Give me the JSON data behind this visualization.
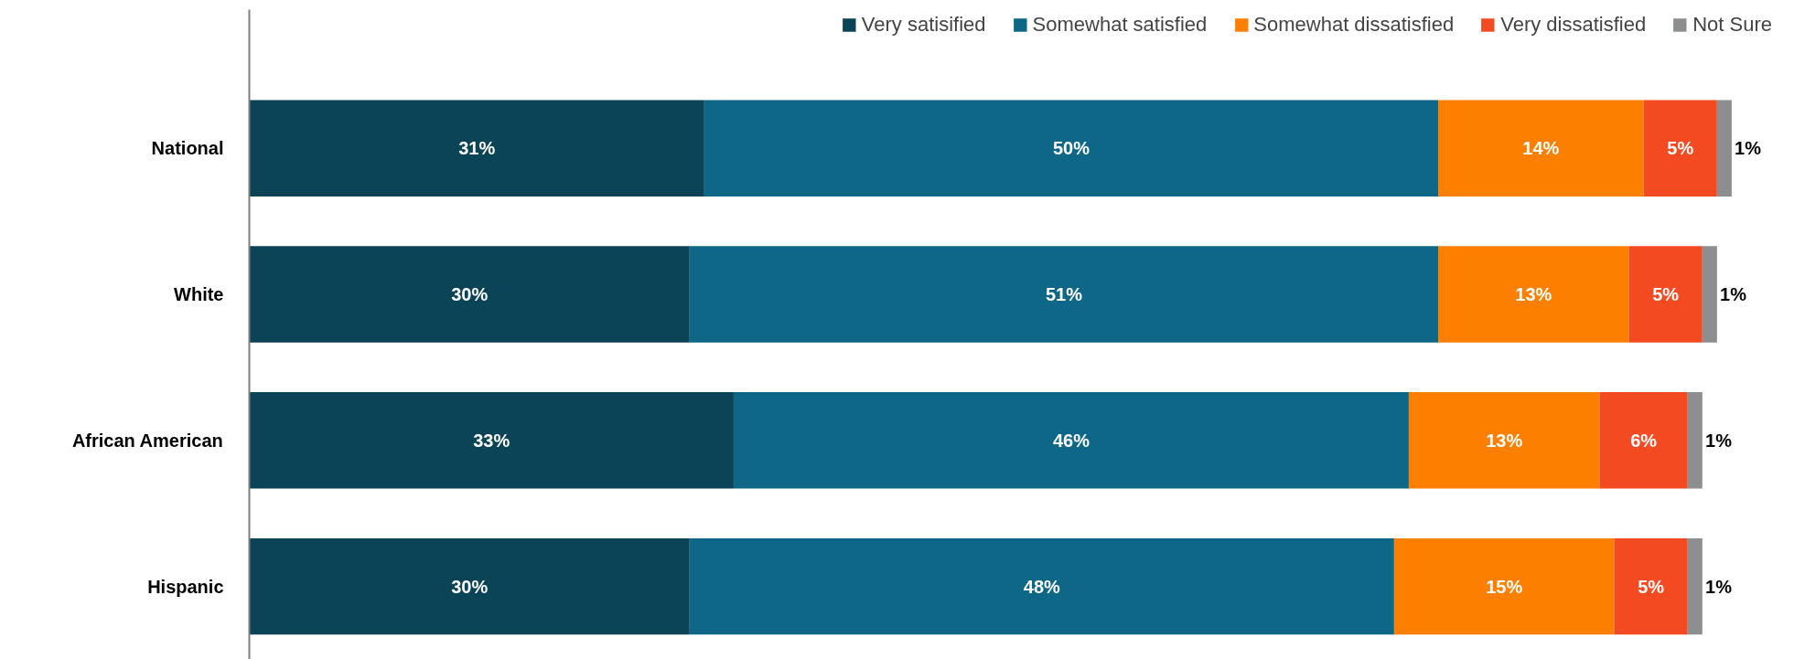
{
  "chart_data": {
    "type": "bar",
    "orientation": "horizontal",
    "stacked": true,
    "legend": "top",
    "categories": [
      "National",
      "White",
      "African American",
      "Hispanic"
    ],
    "series": [
      {
        "name": "Very satisified",
        "color": "#0b4357",
        "values": [
          31,
          30,
          33,
          30
        ],
        "value_labels": [
          "31%",
          "30%",
          "33%",
          "30%"
        ]
      },
      {
        "name": "Somewhat satisfied",
        "color": "#0f6788",
        "values": [
          50,
          51,
          46,
          48
        ],
        "value_labels": [
          "50%",
          "51%",
          "46%",
          "48%"
        ]
      },
      {
        "name": "Somewhat dissatisfied",
        "color": "#fd7f00",
        "values": [
          14,
          13,
          13,
          15
        ],
        "value_labels": [
          "14%",
          "13%",
          "13%",
          "15%"
        ]
      },
      {
        "name": "Very dissatisfied",
        "color": "#f44a22",
        "values": [
          5,
          5,
          6,
          5
        ],
        "value_labels": [
          "5%",
          "5%",
          "6%",
          "5%"
        ]
      },
      {
        "name": "Not Sure",
        "color": "#8c8e90",
        "values": [
          1,
          1,
          1,
          1
        ],
        "value_labels": [
          "1%",
          "1%",
          "1%",
          "1%"
        ]
      }
    ]
  }
}
